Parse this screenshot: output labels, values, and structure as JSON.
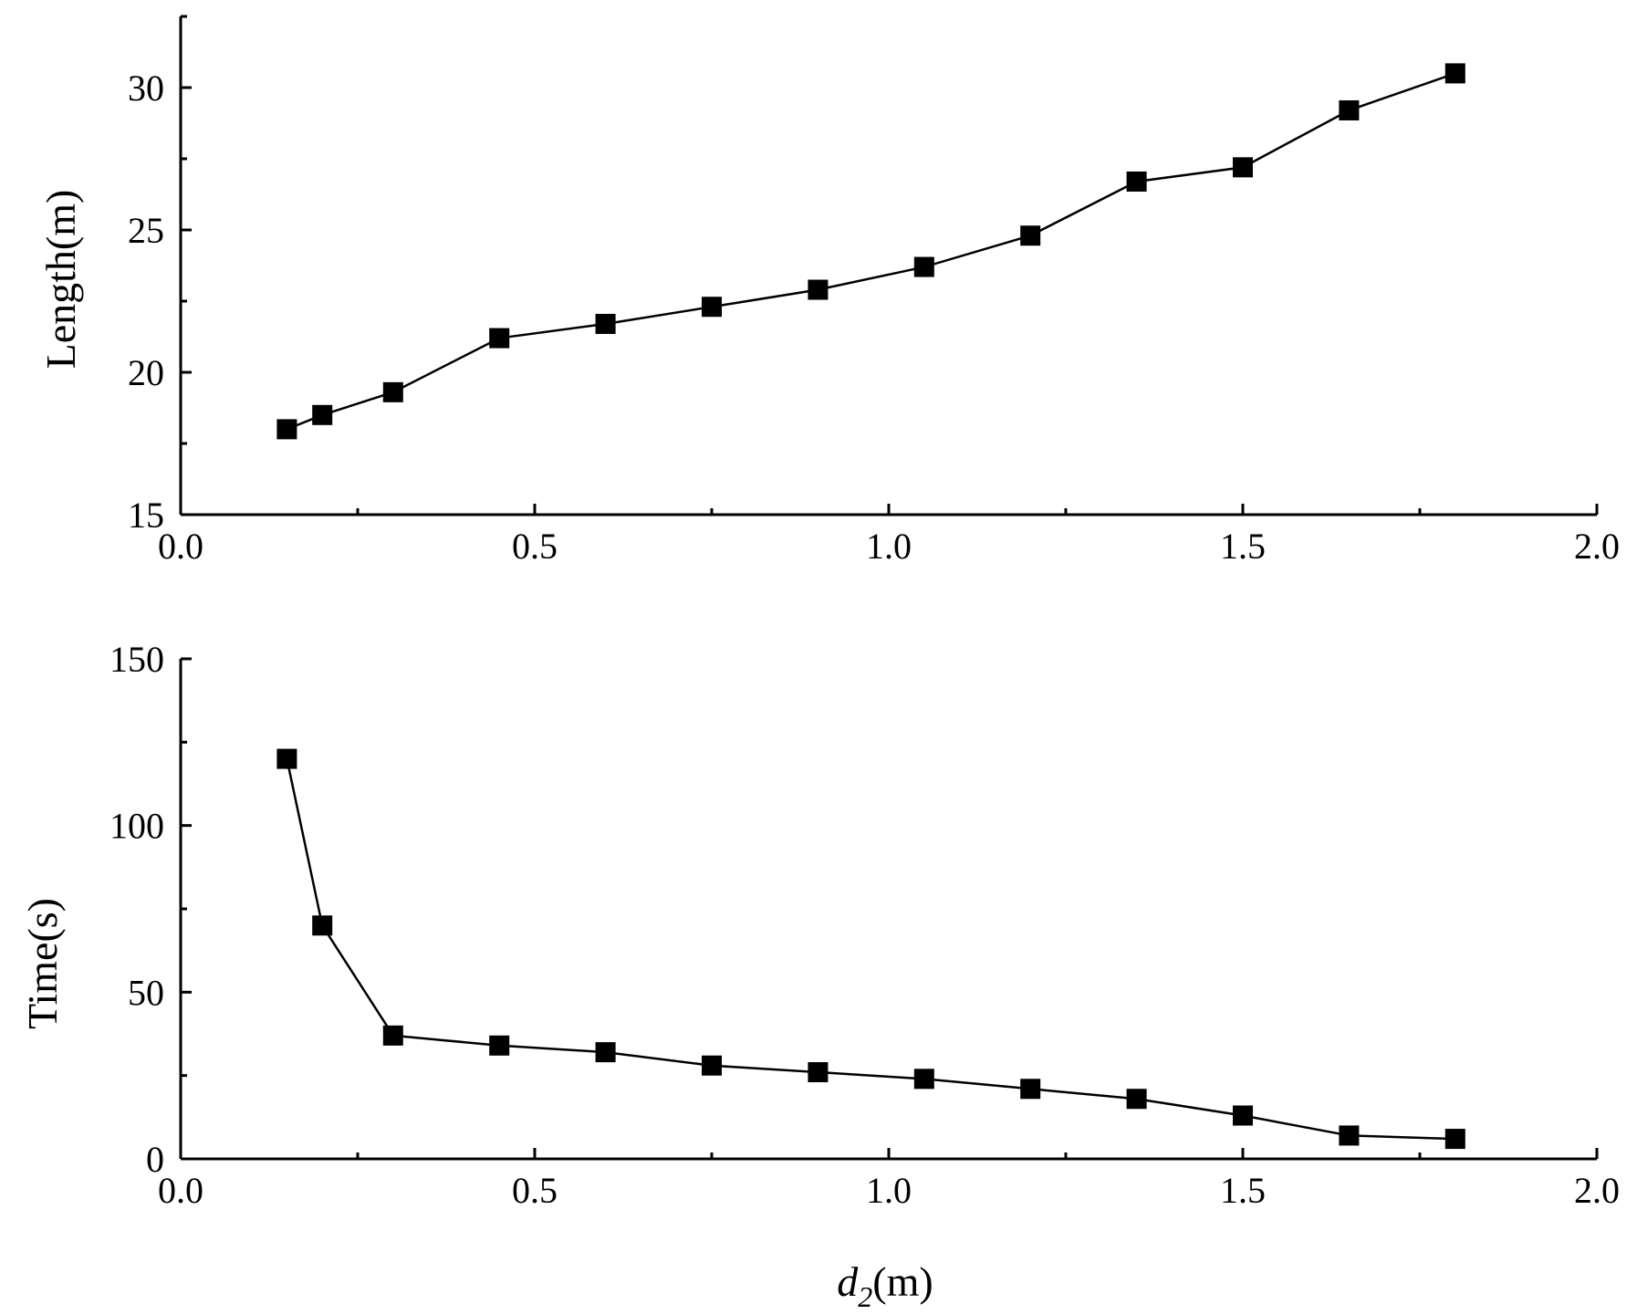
{
  "chart_data": [
    {
      "type": "line",
      "marker": "square",
      "xlim": [
        0,
        2.0
      ],
      "ylim": [
        15,
        32.5
      ],
      "xticks": [
        "0.0",
        "0.5",
        "1.0",
        "1.5",
        "2.0"
      ],
      "xtick_values": [
        0,
        0.5,
        1.0,
        1.5,
        2.0
      ],
      "yticks": [
        "15",
        "20",
        "25",
        "30"
      ],
      "ytick_values": [
        15,
        20,
        25,
        30
      ],
      "ylabel": "Length(m)",
      "series": [
        {
          "x": [
            0.15,
            0.2,
            0.3,
            0.45,
            0.6,
            0.75,
            0.9,
            1.05,
            1.2,
            1.35,
            1.5,
            1.65,
            1.8
          ],
          "y": [
            18.0,
            18.5,
            19.3,
            21.2,
            21.7,
            22.3,
            22.9,
            23.7,
            24.8,
            26.7,
            27.2,
            29.2,
            30.5
          ]
        }
      ],
      "grid": false,
      "color": "#000000"
    },
    {
      "type": "line",
      "marker": "square",
      "xlim": [
        0,
        2.0
      ],
      "ylim": [
        0,
        150
      ],
      "xticks": [
        "0.0",
        "0.5",
        "1.0",
        "1.5",
        "2.0"
      ],
      "xtick_values": [
        0,
        0.5,
        1.0,
        1.5,
        2.0
      ],
      "yticks": [
        "0",
        "50",
        "100",
        "150"
      ],
      "ytick_values": [
        0,
        50,
        100,
        150
      ],
      "ylabel": "Time(s)",
      "xlabel_var": "d",
      "xlabel_sub": "2",
      "xlabel_unit": "(m)",
      "series": [
        {
          "x": [
            0.15,
            0.2,
            0.3,
            0.45,
            0.6,
            0.75,
            0.9,
            1.05,
            1.2,
            1.35,
            1.5,
            1.65,
            1.8
          ],
          "y": [
            120,
            70,
            37,
            34,
            32,
            28,
            26,
            24,
            21,
            18,
            13,
            7,
            6
          ]
        }
      ],
      "grid": false,
      "color": "#000000"
    }
  ]
}
